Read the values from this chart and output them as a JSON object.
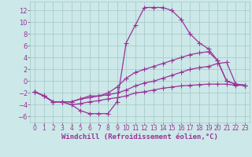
{
  "background_color": "#cce8e8",
  "grid_color": "#aacccc",
  "line_color": "#993399",
  "line_width": 0.9,
  "marker": "+",
  "markersize": 4,
  "markerwidth": 0.8,
  "xlabel": "Windchill (Refroidissement éolien,°C)",
  "xlabel_fontsize": 6.5,
  "ytick_fontsize": 6,
  "xtick_fontsize": 5.5,
  "ylabel_ticks": [
    -6,
    -4,
    -2,
    0,
    2,
    4,
    6,
    8,
    10,
    12
  ],
  "xlim": [
    -0.5,
    23.5
  ],
  "ylim": [
    -7.0,
    13.5
  ],
  "xticks": [
    0,
    1,
    2,
    3,
    4,
    5,
    6,
    7,
    8,
    9,
    10,
    11,
    12,
    13,
    14,
    15,
    16,
    17,
    18,
    19,
    20,
    21,
    22,
    23
  ],
  "series": [
    {
      "points": [
        [
          0,
          -1.8
        ],
        [
          1,
          -2.5
        ],
        [
          2,
          -3.5
        ],
        [
          3,
          -3.5
        ],
        [
          4,
          -4.0
        ],
        [
          5,
          -5.0
        ],
        [
          6,
          -5.5
        ],
        [
          7,
          -5.5
        ],
        [
          8,
          -5.5
        ],
        [
          9,
          -3.5
        ],
        [
          10,
          6.5
        ],
        [
          11,
          9.5
        ],
        [
          12,
          12.5
        ],
        [
          13,
          12.5
        ],
        [
          14,
          12.5
        ],
        [
          15,
          12.0
        ],
        [
          16,
          10.5
        ],
        [
          17,
          8.0
        ],
        [
          18,
          6.5
        ],
        [
          19,
          5.5
        ],
        [
          20,
          3.5
        ],
        [
          21,
          0.0
        ],
        [
          22,
          -0.5
        ],
        [
          23,
          -0.7
        ]
      ]
    },
    {
      "points": [
        [
          0,
          -1.8
        ],
        [
          1,
          -2.5
        ],
        [
          2,
          -3.5
        ],
        [
          3,
          -3.5
        ],
        [
          4,
          -3.5
        ],
        [
          5,
          -3.0
        ],
        [
          6,
          -2.5
        ],
        [
          7,
          -2.5
        ],
        [
          8,
          -2.0
        ],
        [
          9,
          -1.0
        ],
        [
          10,
          0.5
        ],
        [
          11,
          1.5
        ],
        [
          12,
          2.0
        ],
        [
          13,
          2.5
        ],
        [
          14,
          3.0
        ],
        [
          15,
          3.5
        ],
        [
          16,
          4.0
        ],
        [
          17,
          4.5
        ],
        [
          18,
          4.8
        ],
        [
          19,
          5.0
        ],
        [
          20,
          3.5
        ],
        [
          21,
          0.0
        ],
        [
          22,
          -0.5
        ],
        [
          23,
          -0.7
        ]
      ]
    },
    {
      "points": [
        [
          0,
          -1.8
        ],
        [
          1,
          -2.5
        ],
        [
          2,
          -3.5
        ],
        [
          3,
          -3.5
        ],
        [
          4,
          -3.5
        ],
        [
          5,
          -3.0
        ],
        [
          6,
          -2.8
        ],
        [
          7,
          -2.5
        ],
        [
          8,
          -2.3
        ],
        [
          9,
          -2.0
        ],
        [
          10,
          -1.5
        ],
        [
          11,
          -0.8
        ],
        [
          12,
          -0.3
        ],
        [
          13,
          0.0
        ],
        [
          14,
          0.5
        ],
        [
          15,
          1.0
        ],
        [
          16,
          1.5
        ],
        [
          17,
          2.0
        ],
        [
          18,
          2.3
        ],
        [
          19,
          2.5
        ],
        [
          20,
          3.0
        ],
        [
          21,
          3.2
        ],
        [
          22,
          -0.5
        ],
        [
          23,
          -0.7
        ]
      ]
    },
    {
      "points": [
        [
          0,
          -1.8
        ],
        [
          1,
          -2.5
        ],
        [
          2,
          -3.5
        ],
        [
          3,
          -3.5
        ],
        [
          4,
          -4.0
        ],
        [
          5,
          -3.8
        ],
        [
          6,
          -3.5
        ],
        [
          7,
          -3.3
        ],
        [
          8,
          -3.0
        ],
        [
          9,
          -2.8
        ],
        [
          10,
          -2.5
        ],
        [
          11,
          -2.0
        ],
        [
          12,
          -1.8
        ],
        [
          13,
          -1.5
        ],
        [
          14,
          -1.2
        ],
        [
          15,
          -1.0
        ],
        [
          16,
          -0.8
        ],
        [
          17,
          -0.7
        ],
        [
          18,
          -0.6
        ],
        [
          19,
          -0.5
        ],
        [
          20,
          -0.5
        ],
        [
          21,
          -0.5
        ],
        [
          22,
          -0.7
        ],
        [
          23,
          -0.7
        ]
      ]
    }
  ]
}
